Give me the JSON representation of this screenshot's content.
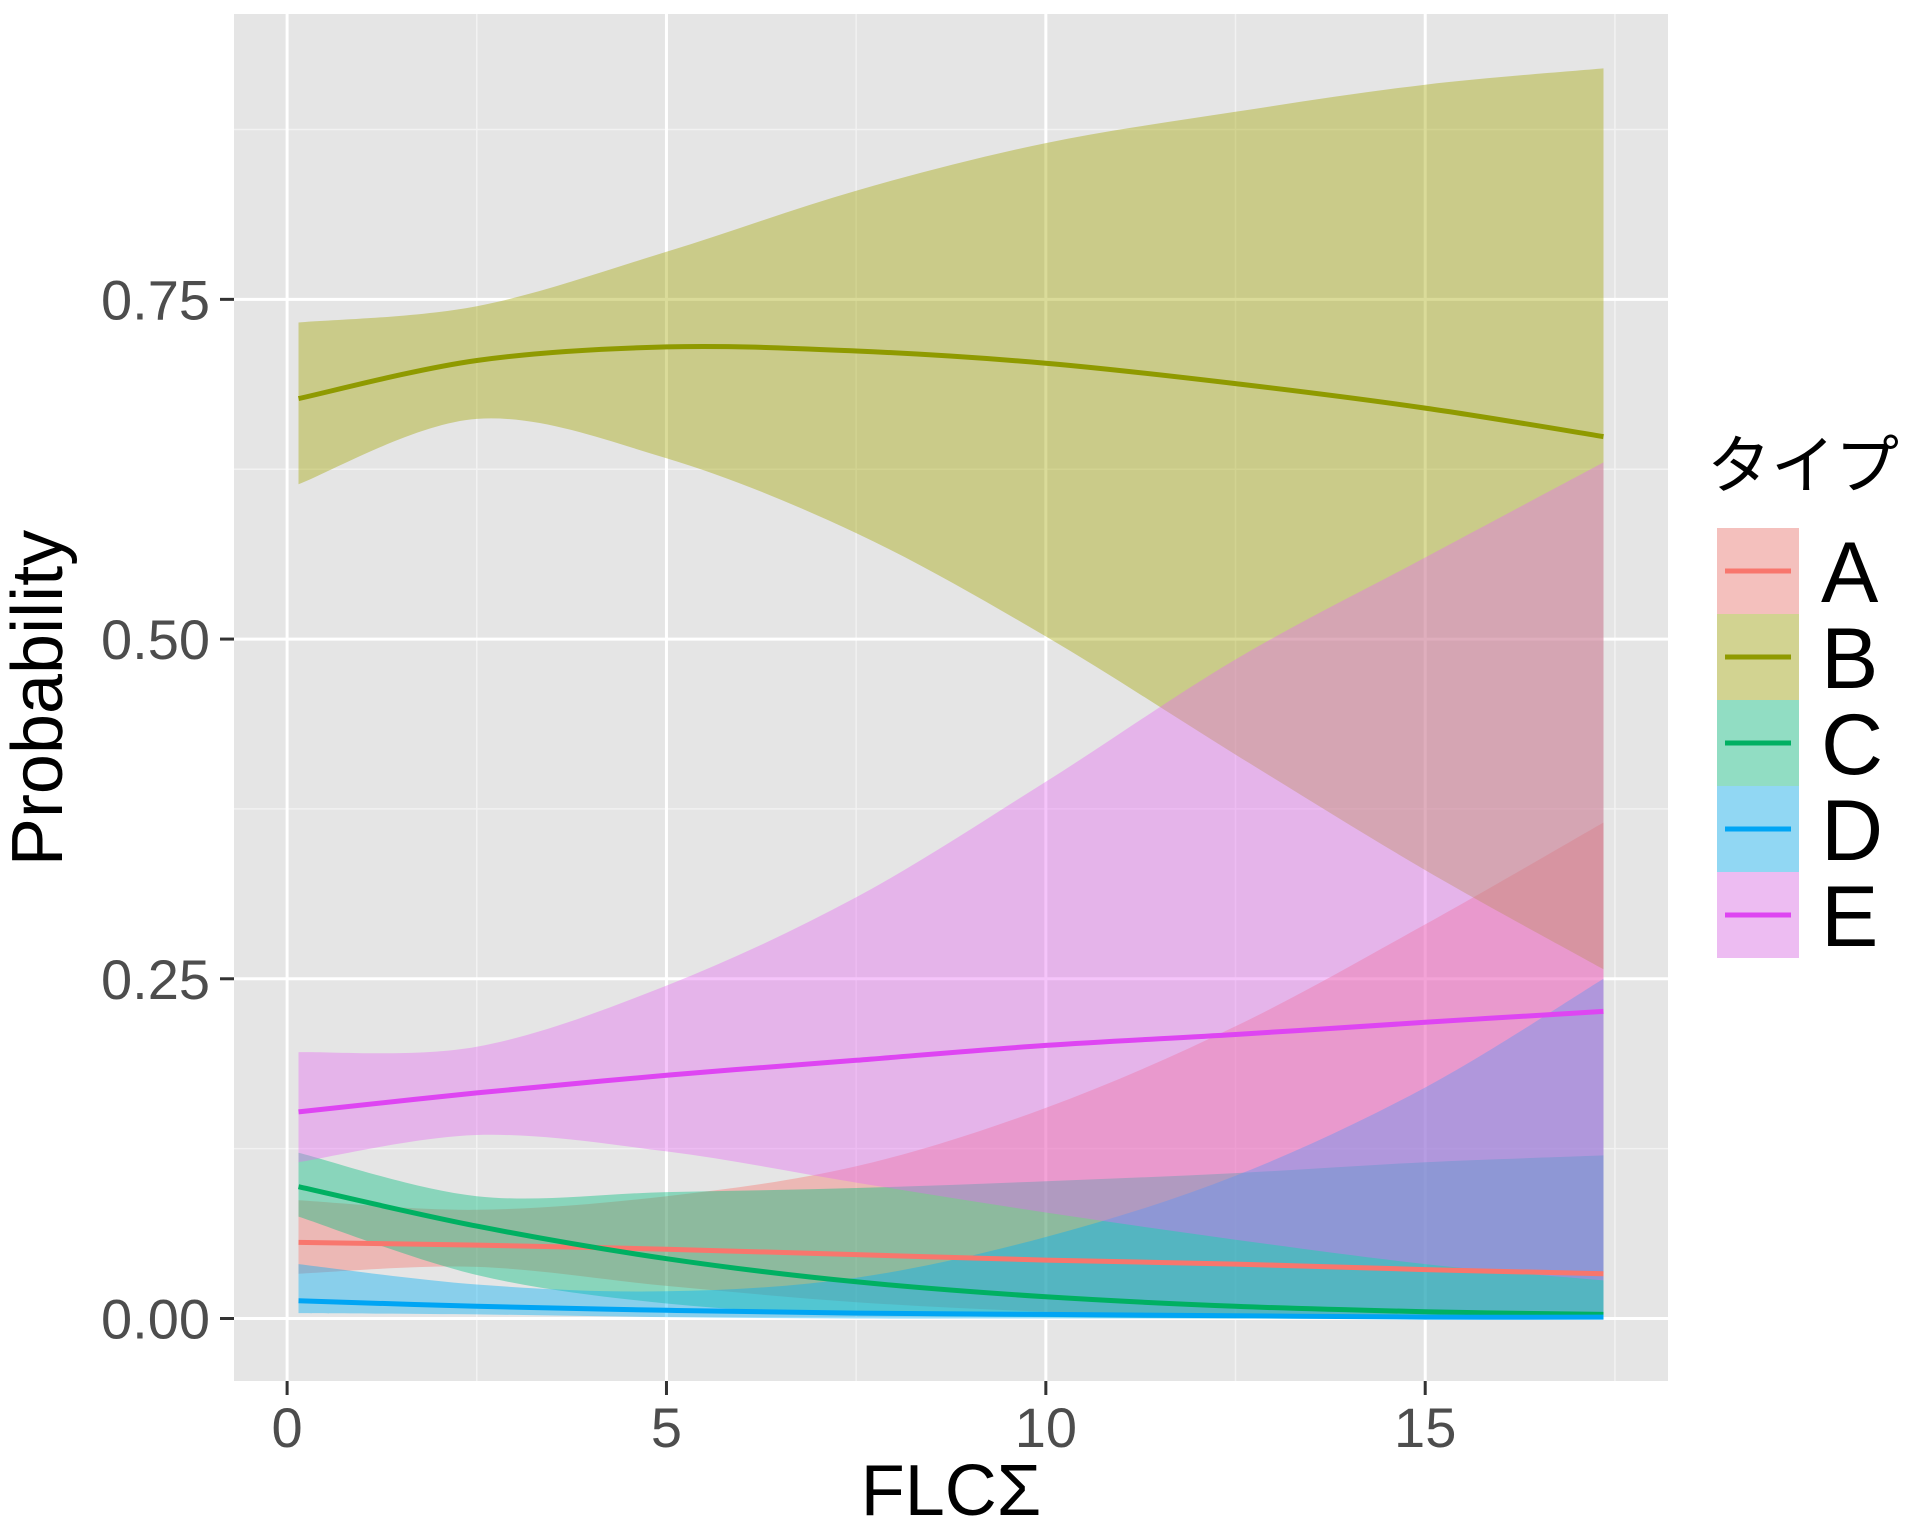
{
  "chart_data": {
    "type": "line",
    "title": "",
    "xlabel": "FLCΣ",
    "ylabel": "Probability",
    "xlim": [
      -0.7,
      18.2
    ],
    "ylim": [
      -0.046,
      0.96
    ],
    "x_ticks": [
      {
        "value": 0,
        "label": "0"
      },
      {
        "value": 5,
        "label": "5"
      },
      {
        "value": 10,
        "label": "10"
      },
      {
        "value": 15,
        "label": "15"
      }
    ],
    "y_ticks": [
      {
        "value": 0,
        "label": "0.00"
      },
      {
        "value": 0.25,
        "label": "0.25"
      },
      {
        "value": 0.5,
        "label": "0.50"
      },
      {
        "value": 0.75,
        "label": "0.75"
      }
    ],
    "grid": true,
    "legend": {
      "title": "タイプ",
      "position": "right"
    },
    "x": [
      0.15,
      2.5,
      5,
      7.5,
      10,
      12.5,
      15,
      17.35
    ],
    "series": [
      {
        "name": "A",
        "color": "#F8766D",
        "fill": "#F8766D",
        "values": [
          0.056,
          0.054,
          0.051,
          0.047,
          0.043,
          0.04,
          0.036,
          0.033
        ],
        "lower": [
          0.033,
          0.038,
          0.024,
          0.012,
          0.005,
          0.002,
          0.001,
          0.0
        ],
        "upper": [
          0.087,
          0.08,
          0.09,
          0.112,
          0.155,
          0.215,
          0.29,
          0.365
        ]
      },
      {
        "name": "B",
        "color": "#8F9A00",
        "fill": "#A3A500",
        "values": [
          0.677,
          0.705,
          0.715,
          0.712,
          0.703,
          0.688,
          0.67,
          0.649
        ],
        "lower": [
          0.614,
          0.662,
          0.633,
          0.578,
          0.502,
          0.415,
          0.33,
          0.257
        ],
        "upper": [
          0.733,
          0.745,
          0.785,
          0.83,
          0.865,
          0.888,
          0.908,
          0.92
        ]
      },
      {
        "name": "C",
        "color": "#00B062",
        "fill": "#00BF7D",
        "values": [
          0.097,
          0.068,
          0.044,
          0.027,
          0.016,
          0.009,
          0.005,
          0.003
        ],
        "lower": [
          0.075,
          0.032,
          0.011,
          0.003,
          0.001,
          0.0,
          0.0,
          0.0
        ],
        "upper": [
          0.122,
          0.09,
          0.093,
          0.096,
          0.101,
          0.107,
          0.115,
          0.12
        ]
      },
      {
        "name": "D",
        "color": "#00A5F4",
        "fill": "#00B0F6",
        "values": [
          0.013,
          0.009,
          0.006,
          0.004,
          0.003,
          0.002,
          0.001,
          0.001
        ],
        "lower": [
          0.004,
          0.003,
          0.001,
          0.0,
          0.0,
          0.0,
          0.0,
          0.0
        ],
        "upper": [
          0.04,
          0.025,
          0.02,
          0.03,
          0.06,
          0.105,
          0.17,
          0.25
        ]
      },
      {
        "name": "E",
        "color": "#DE45F2",
        "fill": "#E76BF3",
        "values": [
          0.152,
          0.166,
          0.179,
          0.19,
          0.201,
          0.209,
          0.218,
          0.226
        ],
        "lower": [
          0.115,
          0.135,
          0.123,
          0.1,
          0.078,
          0.058,
          0.04,
          0.028
        ],
        "upper": [
          0.196,
          0.2,
          0.245,
          0.31,
          0.395,
          0.485,
          0.56,
          0.63
        ]
      }
    ]
  }
}
